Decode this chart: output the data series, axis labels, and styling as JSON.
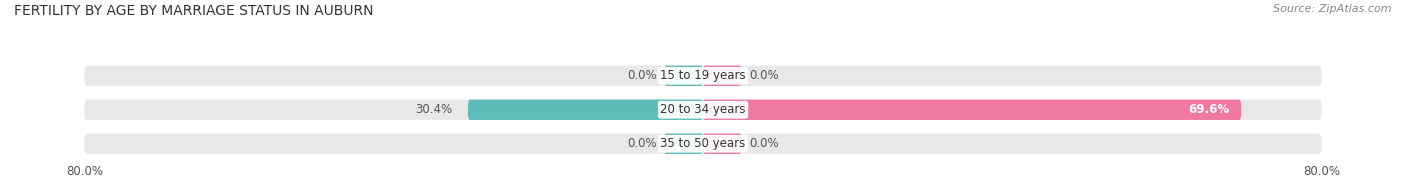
{
  "title": "FERTILITY BY AGE BY MARRIAGE STATUS IN AUBURN",
  "source": "Source: ZipAtlas.com",
  "categories": [
    "15 to 19 years",
    "20 to 34 years",
    "35 to 50 years"
  ],
  "married_values": [
    0.0,
    30.4,
    0.0
  ],
  "unmarried_values": [
    0.0,
    69.6,
    0.0
  ],
  "married_color": "#5bbcb8",
  "unmarried_color": "#f079a0",
  "bar_bg_color": "#e8e8e8",
  "xlim": 80.0,
  "bar_height": 0.6,
  "title_fontsize": 10,
  "source_fontsize": 8,
  "label_fontsize": 8.5,
  "category_fontsize": 8.5,
  "legend_fontsize": 9,
  "axis_label_fontsize": 8.5,
  "background_color": "#ffffff",
  "small_bar_width": 5.0
}
